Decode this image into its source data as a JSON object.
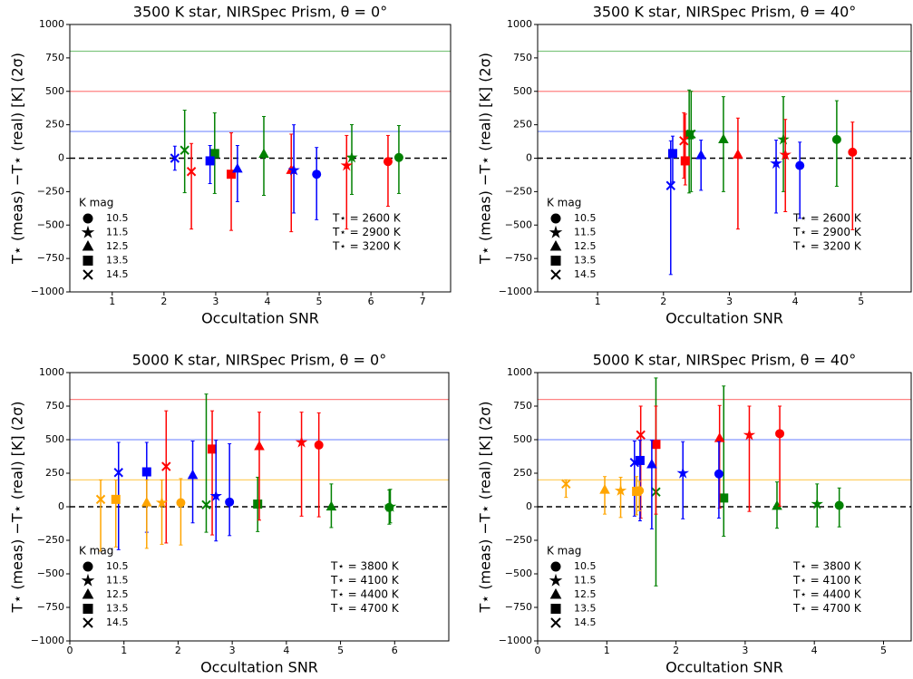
{
  "chart_data": [
    {
      "type": "errorbar",
      "title": "3500 K star, NIRSpec Prism, θ = 0°",
      "xlabel": "Occultation SNR",
      "ylabel": "T⋆ (meas) −T⋆ (real) [K] (2σ)",
      "xlim": [
        0.18,
        7.54
      ],
      "xticks": [
        1,
        2,
        3,
        4,
        5,
        6,
        7
      ],
      "ylim": [
        -1000,
        1000
      ],
      "yticks": [
        {
          "value": -1000,
          "label": "−1000"
        },
        {
          "value": -750,
          "label": "−750"
        },
        {
          "value": -500,
          "label": "−500"
        },
        {
          "value": -250,
          "label": "−250"
        },
        0,
        250,
        500,
        750,
        1000
      ],
      "hlines": [
        {
          "value": 800,
          "color": "#2ca02c"
        },
        {
          "value": 500,
          "color": "#ff3030"
        },
        {
          "value": 200,
          "color": "#3050ff"
        }
      ],
      "legend_title": "K mag",
      "kmags": [
        10.5,
        11.5,
        12.5,
        13.5,
        14.5
      ],
      "markers": [
        "circle",
        "star",
        "triangle",
        "square",
        "x"
      ],
      "series": [
        {
          "name": "T⋆ = 2600 K",
          "color": "green",
          "x": [
            6.54,
            5.63,
            3.93,
            2.98,
            2.4
          ],
          "values": [
            5,
            5,
            30,
            35,
            60
          ],
          "err_high": [
            239,
            246,
            282,
            304,
            299
          ],
          "err_low": [
            269,
            276,
            308,
            299,
            318
          ]
        },
        {
          "name": "T⋆ = 2900 K",
          "color": "red",
          "x": [
            6.33,
            5.53,
            4.46,
            3.3,
            2.53
          ],
          "values": [
            -25,
            -55,
            -90,
            -120,
            -100
          ],
          "err_high": [
            195,
            225,
            270,
            310,
            210
          ],
          "err_low": [
            335,
            475,
            460,
            420,
            430
          ]
        },
        {
          "name": "T⋆ = 3200 K",
          "color": "blue",
          "x": [
            4.95,
            4.51,
            3.42,
            2.89,
            2.21
          ],
          "values": [
            -120,
            -90,
            -80,
            -20,
            0
          ],
          "err_high": [
            200,
            340,
            175,
            115,
            90
          ],
          "err_low": [
            340,
            320,
            245,
            170,
            90
          ]
        }
      ]
    },
    {
      "type": "errorbar",
      "title": "3500 K star, NIRSpec Prism, θ = 40°",
      "xlabel": "Occultation SNR",
      "ylabel": "T⋆ (meas) −T⋆ (real) [K] (2σ)",
      "xlim": [
        0.09,
        5.76
      ],
      "xticks": [
        1,
        2,
        3,
        4,
        5
      ],
      "ylim": [
        -1000,
        1000
      ],
      "yticks": [
        {
          "value": -1000,
          "label": "−1000"
        },
        {
          "value": -750,
          "label": "−750"
        },
        {
          "value": -500,
          "label": "−500"
        },
        {
          "value": -250,
          "label": "−250"
        },
        0,
        250,
        500,
        750,
        1000
      ],
      "hlines": [
        {
          "value": 800,
          "color": "#2ca02c"
        },
        {
          "value": 500,
          "color": "#ff3030"
        },
        {
          "value": 200,
          "color": "#3050ff"
        }
      ],
      "legend_title": "K mag",
      "kmags": [
        10.5,
        11.5,
        12.5,
        13.5,
        14.5
      ],
      "markers": [
        "circle",
        "star",
        "triangle",
        "square",
        "x"
      ],
      "series": [
        {
          "name": "T⋆ = 2600 K",
          "color": "green",
          "x": [
            4.63,
            3.82,
            2.91,
            2.39,
            2.42
          ],
          "values": [
            140,
            140,
            140,
            175,
            180
          ],
          "err_high": [
            290,
            320,
            320,
            335,
            320
          ],
          "err_low": [
            350,
            390,
            390,
            435,
            430
          ]
        },
        {
          "name": "T⋆ = 2900 K",
          "color": "red",
          "x": [
            4.87,
            3.85,
            3.13,
            2.33,
            2.31
          ],
          "values": [
            45,
            25,
            25,
            -20,
            130
          ],
          "err_high": [
            225,
            265,
            275,
            350,
            210
          ],
          "err_low": [
            580,
            425,
            555,
            180,
            280
          ]
        },
        {
          "name": "T⋆ = 3200 K",
          "color": "blue",
          "x": [
            4.07,
            3.71,
            2.57,
            2.14,
            2.11
          ],
          "values": [
            -55,
            -40,
            20,
            35,
            -205
          ],
          "err_high": [
            175,
            175,
            115,
            130,
            335
          ],
          "err_low": [
            395,
            370,
            260,
            215,
            665
          ]
        }
      ]
    },
    {
      "type": "errorbar",
      "title": "5000 K star, NIRSpec Prism, θ = 0°",
      "xlabel": "Occultation SNR",
      "ylabel": "T⋆ (meas) −T⋆ (real) [K] (2σ)",
      "xlim": [
        0,
        7
      ],
      "xticks": [
        0,
        1,
        2,
        3,
        4,
        5,
        6
      ],
      "ylim": [
        -1000,
        1000
      ],
      "yticks": [
        {
          "value": -1000,
          "label": "−1000"
        },
        {
          "value": -750,
          "label": "−750"
        },
        {
          "value": -500,
          "label": "−500"
        },
        {
          "value": -250,
          "label": "−250"
        },
        0,
        250,
        500,
        750,
        1000
      ],
      "hlines": [
        {
          "value": 800,
          "color": "#ff3030"
        },
        {
          "value": 500,
          "color": "#3050ff"
        },
        {
          "value": 200,
          "color": "#ffb000"
        }
      ],
      "legend_title": "K mag",
      "kmags": [
        10.5,
        11.5,
        12.5,
        13.5,
        14.5
      ],
      "markers": [
        "circle",
        "star",
        "triangle",
        "square",
        "x"
      ],
      "series": [
        {
          "name": "T⋆ = 3800 K",
          "color": "green",
          "x": [
            5.9,
            5.92,
            4.83,
            3.47,
            2.52
          ],
          "values": [
            -5,
            0,
            0,
            20,
            15
          ],
          "err_high": [
            130,
            130,
            170,
            200,
            825
          ],
          "err_low": [
            125,
            120,
            155,
            205,
            205
          ]
        },
        {
          "name": "T⋆ = 4100 K",
          "color": "red",
          "x": [
            4.6,
            4.28,
            3.5,
            2.63,
            1.78
          ],
          "values": [
            460,
            480,
            450,
            430,
            300
          ],
          "err_high": [
            240,
            225,
            255,
            285,
            415
          ],
          "err_low": [
            535,
            550,
            550,
            640,
            570
          ]
        },
        {
          "name": "T⋆ = 4400 K",
          "color": "blue",
          "x": [
            2.95,
            2.7,
            2.27,
            1.42,
            0.9
          ],
          "values": [
            35,
            80,
            235,
            260,
            255
          ],
          "err_high": [
            435,
            415,
            255,
            220,
            225
          ],
          "err_low": [
            250,
            335,
            355,
            450,
            575
          ]
        },
        {
          "name": "T⋆ = 4700 K",
          "color": "orange",
          "x": [
            2.05,
            1.7,
            1.42,
            0.85,
            0.57
          ],
          "values": [
            30,
            30,
            30,
            55,
            55
          ],
          "err_high": [
            180,
            170,
            170,
            145,
            145
          ],
          "err_low": [
            315,
            310,
            340,
            355,
            385
          ]
        }
      ]
    },
    {
      "type": "errorbar",
      "title": "5000 K star, NIRSpec Prism, θ = 40°",
      "xlabel": "Occultation SNR",
      "ylabel": "T⋆ (meas) −T⋆ (real) [K] (2σ)",
      "xlim": [
        0,
        5.4
      ],
      "xticks": [
        0,
        1,
        2,
        3,
        4,
        5
      ],
      "ylim": [
        -1000,
        1000
      ],
      "yticks": [
        {
          "value": -1000,
          "label": "−1000"
        },
        {
          "value": -750,
          "label": "−750"
        },
        {
          "value": -500,
          "label": "−500"
        },
        {
          "value": -250,
          "label": "−250"
        },
        0,
        250,
        500,
        750,
        1000
      ],
      "hlines": [
        {
          "value": 800,
          "color": "#ff3030"
        },
        {
          "value": 500,
          "color": "#3050ff"
        },
        {
          "value": 200,
          "color": "#ffb000"
        }
      ],
      "legend_title": "K mag",
      "kmags": [
        10.5,
        11.5,
        12.5,
        13.5,
        14.5
      ],
      "markers": [
        "circle",
        "star",
        "triangle",
        "square",
        "x"
      ],
      "series": [
        {
          "name": "T⋆ = 3800 K",
          "color": "green",
          "x": [
            4.36,
            4.04,
            3.46,
            2.69,
            1.71
          ],
          "values": [
            10,
            20,
            5,
            65,
            110
          ],
          "err_high": [
            130,
            150,
            180,
            835,
            850
          ],
          "err_low": [
            160,
            170,
            165,
            285,
            700
          ]
        },
        {
          "name": "T⋆ = 4100 K",
          "color": "red",
          "x": [
            3.5,
            3.06,
            2.63,
            1.71,
            1.49
          ],
          "values": [
            545,
            535,
            510,
            465,
            535
          ],
          "err_high": [
            205,
            215,
            245,
            285,
            215
          ],
          "err_low": [
            540,
            570,
            520,
            520,
            620
          ]
        },
        {
          "name": "T⋆ = 4400 K",
          "color": "blue",
          "x": [
            2.62,
            2.1,
            1.65,
            1.48,
            1.4
          ],
          "values": [
            245,
            250,
            315,
            345,
            330
          ],
          "err_high": [
            240,
            235,
            180,
            150,
            160
          ],
          "err_low": [
            330,
            340,
            480,
            450,
            400
          ]
        },
        {
          "name": "T⋆ = 4700 K",
          "color": "orange",
          "x": [
            1.47,
            1.2,
            0.97,
            1.43,
            0.41
          ],
          "values": [
            120,
            120,
            125,
            115,
            170
          ],
          "err_high": [
            70,
            100,
            100,
            110,
            30
          ],
          "err_low": [
            150,
            200,
            180,
            175,
            100
          ]
        }
      ]
    }
  ]
}
